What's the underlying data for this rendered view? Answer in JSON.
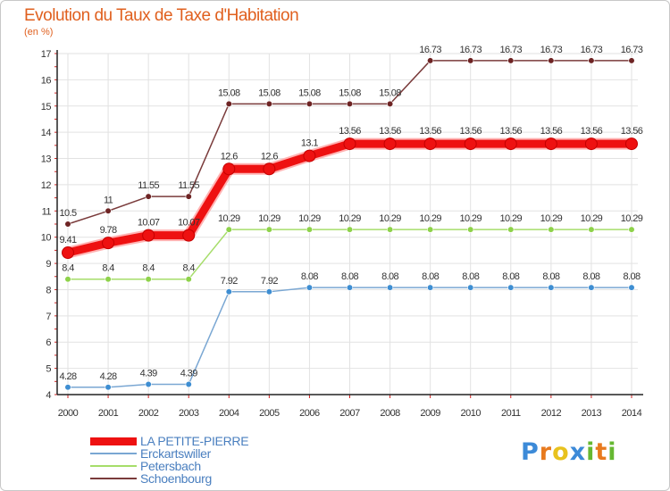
{
  "chart_data": {
    "type": "line",
    "title": "Evolution du Taux de Taxe d'Habitation",
    "subtitle": "(en %)",
    "x": [
      "2000",
      "2001",
      "2002",
      "2003",
      "2004",
      "2005",
      "2006",
      "2007",
      "2008",
      "2009",
      "2010",
      "2011",
      "2012",
      "2013",
      "2014"
    ],
    "ylim": [
      4,
      17
    ],
    "yticks": [
      4,
      5,
      6,
      7,
      8,
      9,
      10,
      11,
      12,
      13,
      14,
      15,
      16,
      17
    ],
    "grid": true,
    "legend_position": "bottom-left",
    "series": [
      {
        "name": "LA PETITE-PIERRE",
        "color": "#ee1111",
        "emphasis": true,
        "values": [
          9.41,
          9.78,
          10.07,
          10.07,
          12.6,
          12.6,
          13.1,
          13.56,
          13.56,
          13.56,
          13.56,
          13.56,
          13.56,
          13.56,
          13.56
        ],
        "labels": [
          "9.41",
          "9.78",
          "10.07",
          "10.07",
          "12.6",
          "12.6",
          "13.1",
          "13.56",
          "13.56",
          "13.56",
          "13.56",
          "13.56",
          "13.56",
          "13.56",
          "13.56"
        ]
      },
      {
        "name": "Erckartswiller",
        "color": "#7aa7d3",
        "marker": "#3e8ed2",
        "values": [
          4.28,
          4.28,
          4.39,
          4.39,
          7.92,
          7.92,
          8.08,
          8.08,
          8.08,
          8.08,
          8.08,
          8.08,
          8.08,
          8.08,
          8.08
        ],
        "labels": [
          "4.28",
          "4.28",
          "4.39",
          "4.39",
          "7.92",
          "7.92",
          "8.08",
          "8.08",
          "8.08",
          "8.08",
          "8.08",
          "8.08",
          "8.08",
          "8.08",
          "8.08"
        ]
      },
      {
        "name": "Petersbach",
        "color": "#a6dd6a",
        "marker": "#8ed24a",
        "values": [
          8.4,
          8.4,
          8.4,
          8.4,
          10.29,
          10.29,
          10.29,
          10.29,
          10.29,
          10.29,
          10.29,
          10.29,
          10.29,
          10.29,
          10.29
        ],
        "labels": [
          "8.4",
          "8.4",
          "8.4",
          "8.4",
          "10.29",
          "10.29",
          "10.29",
          "10.29",
          "10.29",
          "10.29",
          "10.29",
          "10.29",
          "10.29",
          "10.29",
          "10.29"
        ]
      },
      {
        "name": "Schoenbourg",
        "color": "#7a3b3b",
        "marker": "#6e2424",
        "values": [
          10.5,
          11,
          11.55,
          11.55,
          15.08,
          15.08,
          15.08,
          15.08,
          15.08,
          16.73,
          16.73,
          16.73,
          16.73,
          16.73,
          16.73
        ],
        "labels": [
          "10.5",
          "11",
          "11.55",
          "11.55",
          "15.08",
          "15.08",
          "15.08",
          "15.08",
          "15.08",
          "16.73",
          "16.73",
          "16.73",
          "16.73",
          "16.73",
          "16.73"
        ]
      }
    ]
  },
  "logo": {
    "letters": [
      {
        "char": "P",
        "color": "#3c8ad8"
      },
      {
        "char": "r",
        "color": "#e87a1e"
      },
      {
        "char": "o",
        "color": "#e8c21e"
      },
      {
        "char": "x",
        "color": "#3c8ad8"
      },
      {
        "char": "i",
        "color": "#66b832"
      },
      {
        "char": "t",
        "color": "#e87a1e"
      },
      {
        "char": "i",
        "color": "#66b832"
      }
    ]
  }
}
